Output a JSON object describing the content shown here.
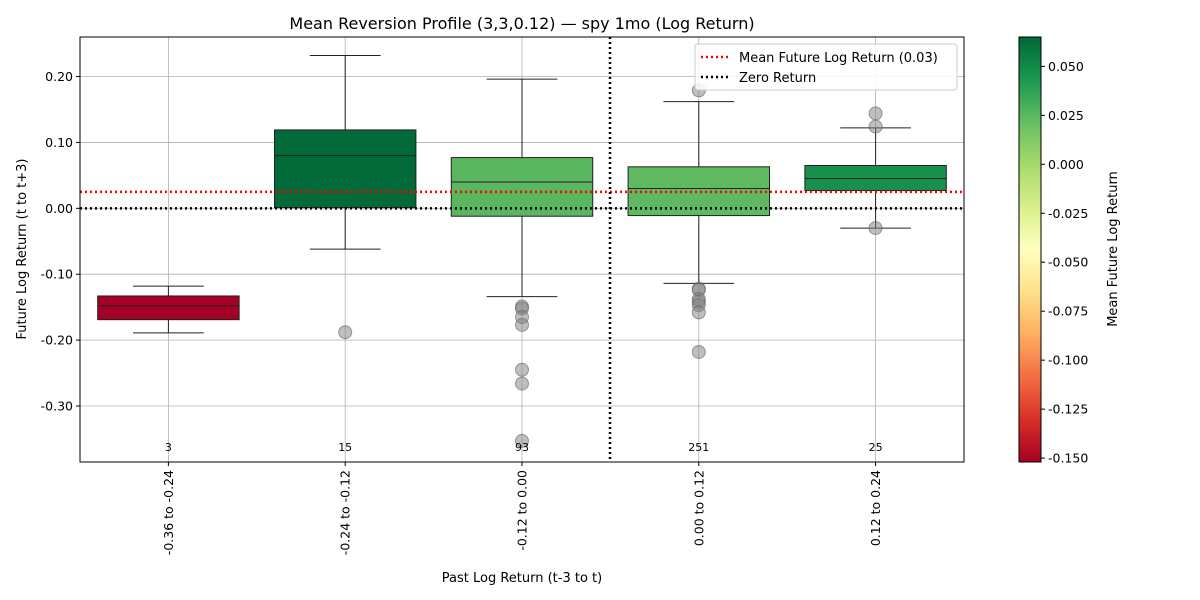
{
  "chart_data": {
    "type": "box",
    "title": "Mean Reversion Profile (3,3,0.12) — spy 1mo (Log Return)",
    "xlabel": "Past Log Return (t-3 to t)",
    "ylabel": "Future Log Return (t to t+3)",
    "ylim": [
      -0.385,
      0.26
    ],
    "yticks": [
      0.2,
      0.1,
      0.0,
      -0.1,
      -0.2,
      -0.3
    ],
    "ytick_labels": [
      "0.20",
      "0.10",
      "0.00",
      "-0.10",
      "-0.20",
      "-0.30"
    ],
    "grid": true,
    "legend_position": "top-right",
    "categories": [
      "-0.36 to -0.24",
      "-0.24 to -0.12",
      "-0.12 to 0.00",
      "0.00 to 0.12",
      "0.12 to 0.24"
    ],
    "counts": [
      "3",
      "15",
      "93",
      "251",
      "25"
    ],
    "boxes": [
      {
        "whisker_low": -0.189,
        "q1": -0.169,
        "median": -0.148,
        "q3": -0.133,
        "whisker_high": -0.118,
        "mean": -0.152,
        "outliers": []
      },
      {
        "whisker_low": -0.062,
        "q1": 0.001,
        "median": 0.08,
        "q3": 0.119,
        "whisker_high": 0.232,
        "mean": 0.064,
        "outliers": [
          -0.188
        ]
      },
      {
        "whisker_low": -0.134,
        "q1": -0.012,
        "median": 0.04,
        "q3": 0.077,
        "whisker_high": 0.196,
        "mean": 0.025,
        "outliers": [
          -0.149,
          -0.152,
          -0.165,
          -0.177,
          -0.245,
          -0.266,
          -0.353
        ]
      },
      {
        "whisker_low": -0.114,
        "q1": -0.011,
        "median": 0.03,
        "q3": 0.063,
        "whisker_high": 0.162,
        "mean": 0.024,
        "outliers": [
          0.179,
          -0.122,
          -0.124,
          -0.138,
          -0.142,
          -0.147,
          -0.158,
          -0.218
        ]
      },
      {
        "whisker_low": -0.03,
        "q1": 0.027,
        "median": 0.045,
        "q3": 0.065,
        "whisker_high": 0.122,
        "mean": 0.047,
        "outliers": [
          0.144,
          0.124,
          -0.03
        ]
      }
    ],
    "reference_lines": [
      {
        "label": "Mean Future Log Return (0.03)",
        "y": 0.025,
        "color": "#ff0000"
      },
      {
        "label": "Zero Return",
        "y": 0.0,
        "color": "#000000"
      }
    ],
    "vertical_divider_x": 0.0,
    "colorbar": {
      "label": "Mean Future Log Return",
      "min": -0.152,
      "max": 0.065,
      "ticks": [
        0.05,
        0.025,
        0.0,
        -0.025,
        -0.05,
        -0.075,
        -0.1,
        -0.125,
        -0.15
      ],
      "tick_labels": [
        "0.050",
        "0.025",
        "0.000",
        "-0.025",
        "-0.050",
        "-0.075",
        "-0.100",
        "-0.125",
        "-0.150"
      ],
      "colormap": "RdYlGn"
    }
  }
}
